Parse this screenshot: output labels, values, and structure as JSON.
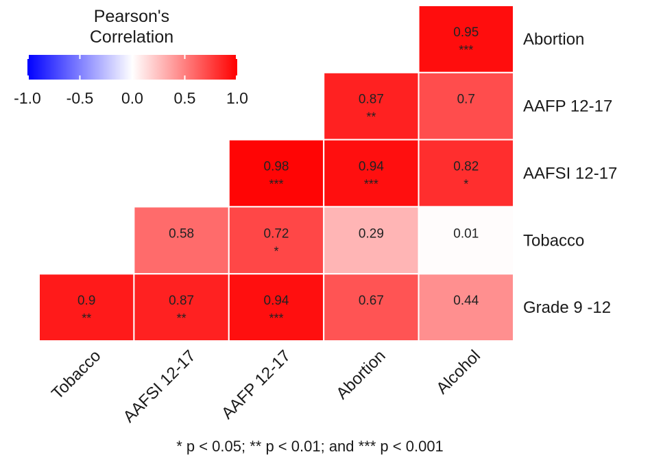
{
  "chart_data": {
    "type": "heatmap",
    "title": "",
    "legend": {
      "title_lines": [
        "Pearson's",
        "Correlation"
      ],
      "ticks": [
        "-1.0",
        "-0.5",
        "0.0",
        "0.5",
        "1.0"
      ],
      "range": [
        -1,
        1
      ],
      "colors": {
        "low": "#0000ff",
        "mid": "#ffffff",
        "high": "#ff0000"
      },
      "placement": "top-left"
    },
    "columns": [
      "Tobacco",
      "AAFSI 12-17",
      "AAFP 12-17",
      "Abortion",
      "Alcohol"
    ],
    "rows": [
      "Abortion",
      "AAFP 12-17",
      "AAFSI 12-17",
      "Tobacco",
      "Grade 9 -12"
    ],
    "cells": [
      {
        "row": "Abortion",
        "col": "Alcohol",
        "value": 0.95,
        "label": "0.95",
        "sig": "***"
      },
      {
        "row": "AAFP 12-17",
        "col": "Abortion",
        "value": 0.87,
        "label": "0.87",
        "sig": "**"
      },
      {
        "row": "AAFP 12-17",
        "col": "Alcohol",
        "value": 0.7,
        "label": "0.7",
        "sig": ""
      },
      {
        "row": "AAFSI 12-17",
        "col": "AAFP 12-17",
        "value": 0.98,
        "label": "0.98",
        "sig": "***"
      },
      {
        "row": "AAFSI 12-17",
        "col": "Abortion",
        "value": 0.94,
        "label": "0.94",
        "sig": "***"
      },
      {
        "row": "AAFSI 12-17",
        "col": "Alcohol",
        "value": 0.82,
        "label": "0.82",
        "sig": "*"
      },
      {
        "row": "Tobacco",
        "col": "AAFSI 12-17",
        "value": 0.58,
        "label": "0.58",
        "sig": ""
      },
      {
        "row": "Tobacco",
        "col": "AAFP 12-17",
        "value": 0.72,
        "label": "0.72",
        "sig": "*"
      },
      {
        "row": "Tobacco",
        "col": "Abortion",
        "value": 0.29,
        "label": "0.29",
        "sig": ""
      },
      {
        "row": "Tobacco",
        "col": "Alcohol",
        "value": 0.01,
        "label": "0.01",
        "sig": ""
      },
      {
        "row": "Grade 9 -12",
        "col": "Tobacco",
        "value": 0.9,
        "label": "0.9",
        "sig": "**"
      },
      {
        "row": "Grade 9 -12",
        "col": "AAFSI 12-17",
        "value": 0.87,
        "label": "0.87",
        "sig": "**"
      },
      {
        "row": "Grade 9 -12",
        "col": "AAFP 12-17",
        "value": 0.94,
        "label": "0.94",
        "sig": "***"
      },
      {
        "row": "Grade 9 -12",
        "col": "Abortion",
        "value": 0.67,
        "label": "0.67",
        "sig": ""
      },
      {
        "row": "Grade 9 -12",
        "col": "Alcohol",
        "value": 0.44,
        "label": "0.44",
        "sig": ""
      }
    ],
    "footnote": "* p < 0.05; ** p < 0.01; and *** p < 0.001"
  }
}
